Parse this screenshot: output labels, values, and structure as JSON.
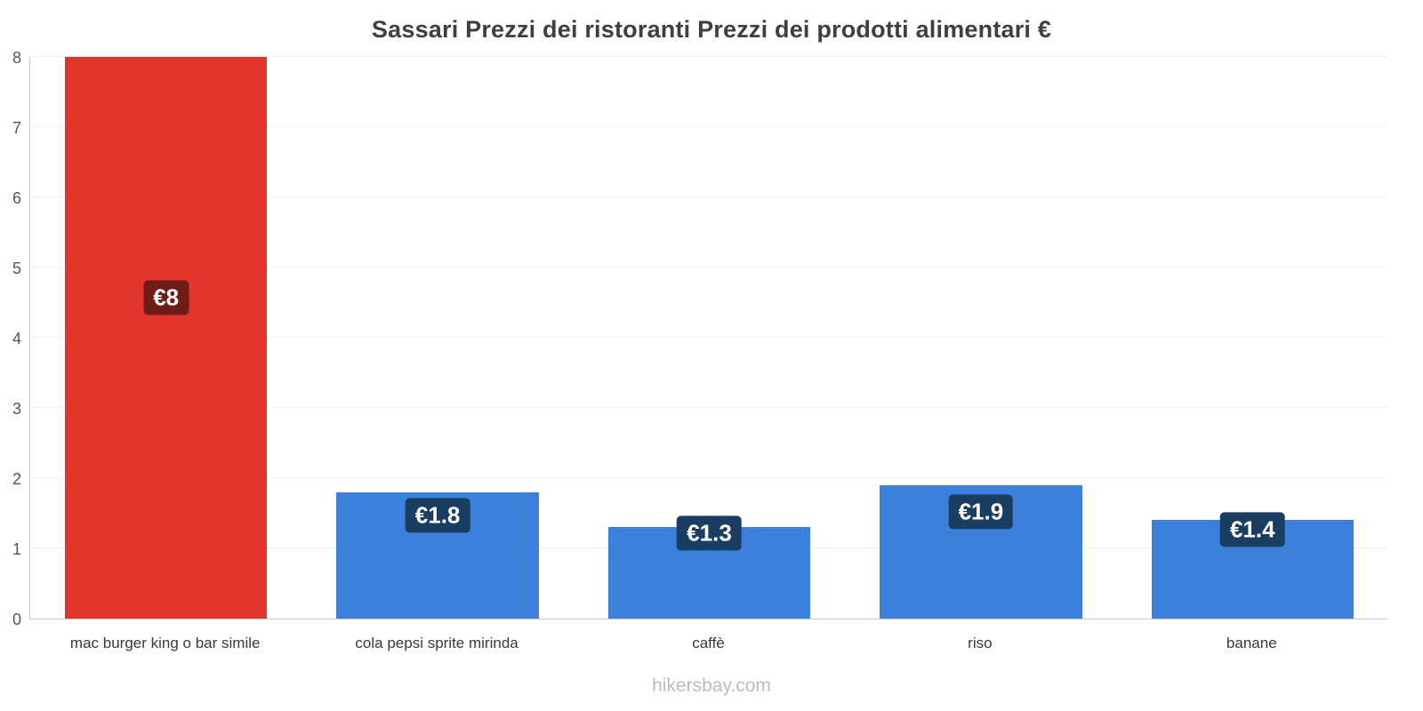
{
  "chart_data": {
    "type": "bar",
    "title": "Sassari Prezzi dei ristoranti Prezzi dei prodotti alimentari €",
    "categories": [
      "mac burger king o bar simile",
      "cola pepsi sprite mirinda",
      "caffè",
      "riso",
      "banane"
    ],
    "values": [
      8,
      1.8,
      1.3,
      1.9,
      1.4
    ],
    "value_labels": [
      "€8",
      "€1.8",
      "€1.3",
      "€1.9",
      "€1.4"
    ],
    "bar_colors": [
      "#e4342e",
      "#3b80dc",
      "#3b80dc",
      "#3b80dc",
      "#3b80dc"
    ],
    "label_bg_colors": [
      "#711d17",
      "#1a3e61",
      "#1a3e61",
      "#1a3e61",
      "#1a3e61"
    ],
    "xlabel": "",
    "ylabel": "",
    "ylim": [
      0,
      8
    ],
    "ytick_step": 1,
    "grid": true,
    "legend": false,
    "legend_position": "none"
  },
  "footer": {
    "text": "hikersbay.com"
  }
}
